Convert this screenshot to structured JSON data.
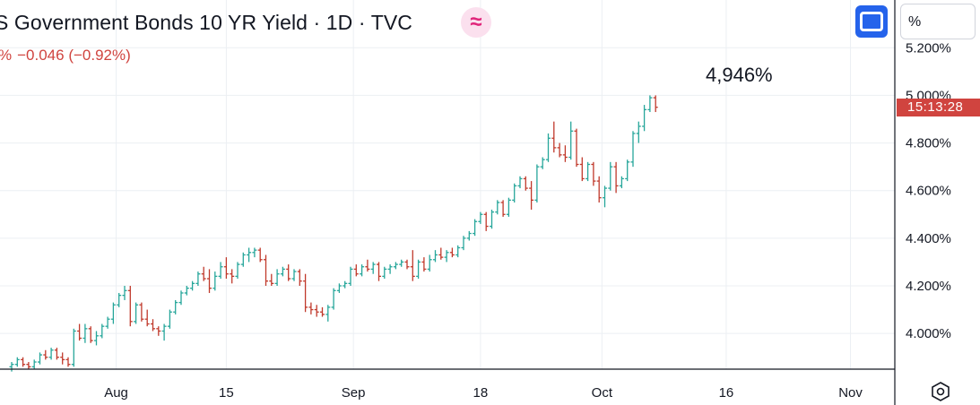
{
  "header": {
    "title": "S Government Bonds 10 YR Yield · 1D · TVC",
    "change_prefix": "%",
    "change_value": "−0.046 (−0.92%)",
    "wave_symbol": "≈",
    "unit_label": "%"
  },
  "price_tag": {
    "time": "15:13:28",
    "color": "#d0443f"
  },
  "last_value_label": "4,946%",
  "icons": {
    "wave": "wave-approx-icon",
    "fullscreen": "fullscreen-icon",
    "settings": "hexagon-settings-icon"
  },
  "colors": {
    "up": "#26a69a",
    "down": "#c0392b",
    "grid": "#eceff3",
    "axis": "#131722"
  },
  "chart_data": {
    "type": "ohlc",
    "title": "S Government Bonds 10 YR Yield · 1D · TVC",
    "interval": "1D",
    "y_unit": "%",
    "ylim": [
      3.85,
      5.25
    ],
    "y_ticks": [
      {
        "value": 4.0,
        "label": "4.000%"
      },
      {
        "value": 4.2,
        "label": "4.200%"
      },
      {
        "value": 4.4,
        "label": "4.400%"
      },
      {
        "value": 4.6,
        "label": "4.600%"
      },
      {
        "value": 4.8,
        "label": "4.800%"
      },
      {
        "value": 5.0,
        "label": "5.000%"
      },
      {
        "value": 5.2,
        "label": "5.200%"
      }
    ],
    "x_ticks": [
      {
        "index": 18.5,
        "label": "Aug"
      },
      {
        "index": 38.0,
        "label": "15"
      },
      {
        "index": 60.5,
        "label": "Sep"
      },
      {
        "index": 83.0,
        "label": "18"
      },
      {
        "index": 104.5,
        "label": "Oct"
      },
      {
        "index": 126.5,
        "label": "16"
      },
      {
        "index": 148.5,
        "label": "Nov"
      }
    ],
    "grid": true,
    "bars": [
      [
        3.86,
        3.88,
        3.84,
        3.87
      ],
      [
        3.87,
        3.9,
        3.86,
        3.89
      ],
      [
        3.89,
        3.9,
        3.86,
        3.87
      ],
      [
        3.87,
        3.88,
        3.85,
        3.86
      ],
      [
        3.86,
        3.89,
        3.85,
        3.88
      ],
      [
        3.88,
        3.92,
        3.87,
        3.91
      ],
      [
        3.91,
        3.93,
        3.89,
        3.9
      ],
      [
        3.9,
        3.94,
        3.89,
        3.93
      ],
      [
        3.93,
        3.94,
        3.89,
        3.9
      ],
      [
        3.9,
        3.92,
        3.87,
        3.89
      ],
      [
        3.89,
        3.9,
        3.86,
        3.87
      ],
      [
        3.87,
        4.02,
        3.86,
        4.01
      ],
      [
        4.01,
        4.04,
        3.97,
        3.98
      ],
      [
        3.98,
        4.04,
        3.96,
        4.02
      ],
      [
        4.02,
        4.03,
        3.96,
        3.97
      ],
      [
        3.97,
        4.01,
        3.95,
        3.99
      ],
      [
        3.99,
        4.04,
        3.98,
        4.03
      ],
      [
        4.03,
        4.07,
        4.02,
        4.06
      ],
      [
        4.06,
        4.13,
        4.04,
        4.12
      ],
      [
        4.12,
        4.17,
        4.11,
        4.16
      ],
      [
        4.16,
        4.2,
        4.14,
        4.18
      ],
      [
        4.18,
        4.2,
        4.03,
        4.05
      ],
      [
        4.05,
        4.13,
        4.04,
        4.12
      ],
      [
        4.12,
        4.13,
        4.05,
        4.06
      ],
      [
        4.06,
        4.1,
        4.03,
        4.04
      ],
      [
        4.04,
        4.06,
        4.01,
        4.02
      ],
      [
        4.02,
        4.03,
        3.99,
        4.01
      ],
      [
        4.01,
        4.04,
        3.97,
        4.03
      ],
      [
        4.03,
        4.1,
        4.02,
        4.09
      ],
      [
        4.09,
        4.14,
        4.08,
        4.13
      ],
      [
        4.13,
        4.18,
        4.12,
        4.17
      ],
      [
        4.17,
        4.2,
        4.16,
        4.19
      ],
      [
        4.19,
        4.22,
        4.18,
        4.21
      ],
      [
        4.21,
        4.26,
        4.2,
        4.25
      ],
      [
        4.25,
        4.28,
        4.22,
        4.23
      ],
      [
        4.23,
        4.27,
        4.17,
        4.19
      ],
      [
        4.19,
        4.26,
        4.18,
        4.24
      ],
      [
        4.24,
        4.3,
        4.23,
        4.28
      ],
      [
        4.28,
        4.32,
        4.23,
        4.25
      ],
      [
        4.25,
        4.27,
        4.21,
        4.24
      ],
      [
        4.24,
        4.3,
        4.23,
        4.29
      ],
      [
        4.29,
        4.34,
        4.28,
        4.33
      ],
      [
        4.33,
        4.36,
        4.3,
        4.34
      ],
      [
        4.34,
        4.36,
        4.32,
        4.35
      ],
      [
        4.35,
        4.36,
        4.3,
        4.31
      ],
      [
        4.31,
        4.33,
        4.2,
        4.22
      ],
      [
        4.22,
        4.25,
        4.2,
        4.21
      ],
      [
        4.21,
        4.27,
        4.2,
        4.25
      ],
      [
        4.25,
        4.28,
        4.24,
        4.27
      ],
      [
        4.27,
        4.29,
        4.22,
        4.23
      ],
      [
        4.23,
        4.27,
        4.22,
        4.26
      ],
      [
        4.26,
        4.27,
        4.2,
        4.22
      ],
      [
        4.22,
        4.25,
        4.09,
        4.11
      ],
      [
        4.11,
        4.13,
        4.08,
        4.1
      ],
      [
        4.1,
        4.12,
        4.07,
        4.09
      ],
      [
        4.09,
        4.11,
        4.07,
        4.08
      ],
      [
        4.08,
        4.12,
        4.05,
        4.11
      ],
      [
        4.11,
        4.19,
        4.1,
        4.18
      ],
      [
        4.18,
        4.21,
        4.17,
        4.2
      ],
      [
        4.2,
        4.22,
        4.19,
        4.21
      ],
      [
        4.21,
        4.28,
        4.2,
        4.27
      ],
      [
        4.27,
        4.29,
        4.24,
        4.25
      ],
      [
        4.25,
        4.29,
        4.24,
        4.28
      ],
      [
        4.28,
        4.31,
        4.26,
        4.27
      ],
      [
        4.27,
        4.3,
        4.25,
        4.29
      ],
      [
        4.29,
        4.3,
        4.22,
        4.24
      ],
      [
        4.24,
        4.28,
        4.23,
        4.27
      ],
      [
        4.27,
        4.29,
        4.25,
        4.28
      ],
      [
        4.28,
        4.3,
        4.27,
        4.29
      ],
      [
        4.29,
        4.31,
        4.28,
        4.3
      ],
      [
        4.3,
        4.31,
        4.27,
        4.28
      ],
      [
        4.28,
        4.35,
        4.22,
        4.24
      ],
      [
        4.24,
        4.31,
        4.23,
        4.3
      ],
      [
        4.3,
        4.32,
        4.26,
        4.27
      ],
      [
        4.27,
        4.33,
        4.26,
        4.31
      ],
      [
        4.31,
        4.35,
        4.3,
        4.33
      ],
      [
        4.33,
        4.36,
        4.31,
        4.32
      ],
      [
        4.32,
        4.35,
        4.3,
        4.34
      ],
      [
        4.34,
        4.36,
        4.32,
        4.33
      ],
      [
        4.33,
        4.37,
        4.32,
        4.36
      ],
      [
        4.36,
        4.41,
        4.35,
        4.4
      ],
      [
        4.4,
        4.43,
        4.39,
        4.42
      ],
      [
        4.42,
        4.48,
        4.41,
        4.47
      ],
      [
        4.47,
        4.51,
        4.46,
        4.5
      ],
      [
        4.5,
        4.51,
        4.43,
        4.45
      ],
      [
        4.45,
        4.52,
        4.44,
        4.51
      ],
      [
        4.51,
        4.56,
        4.5,
        4.55
      ],
      [
        4.55,
        4.56,
        4.49,
        4.5
      ],
      [
        4.5,
        4.57,
        4.49,
        4.56
      ],
      [
        4.56,
        4.63,
        4.55,
        4.62
      ],
      [
        4.62,
        4.66,
        4.61,
        4.65
      ],
      [
        4.65,
        4.66,
        4.6,
        4.61
      ],
      [
        4.61,
        4.64,
        4.52,
        4.56
      ],
      [
        4.56,
        4.71,
        4.55,
        4.7
      ],
      [
        4.7,
        4.74,
        4.69,
        4.73
      ],
      [
        4.73,
        4.84,
        4.72,
        4.82
      ],
      [
        4.82,
        4.89,
        4.76,
        4.78
      ],
      [
        4.78,
        4.8,
        4.74,
        4.75
      ],
      [
        4.75,
        4.79,
        4.72,
        4.74
      ],
      [
        4.74,
        4.89,
        4.73,
        4.85
      ],
      [
        4.85,
        4.86,
        4.7,
        4.71
      ],
      [
        4.71,
        4.74,
        4.64,
        4.65
      ],
      [
        4.65,
        4.72,
        4.64,
        4.71
      ],
      [
        4.71,
        4.72,
        4.62,
        4.64
      ],
      [
        4.64,
        4.66,
        4.55,
        4.57
      ],
      [
        4.57,
        4.62,
        4.53,
        4.61
      ],
      [
        4.61,
        4.72,
        4.6,
        4.7
      ],
      [
        4.7,
        4.72,
        4.59,
        4.62
      ],
      [
        4.62,
        4.66,
        4.61,
        4.65
      ],
      [
        4.65,
        4.73,
        4.64,
        4.72
      ],
      [
        4.72,
        4.85,
        4.7,
        4.84
      ],
      [
        4.84,
        4.89,
        4.8,
        4.87
      ],
      [
        4.87,
        4.96,
        4.85,
        4.94
      ],
      [
        4.94,
        5.0,
        4.93,
        4.99
      ],
      [
        4.99,
        5.0,
        4.93,
        4.95
      ]
    ],
    "last_value": 4.946
  }
}
